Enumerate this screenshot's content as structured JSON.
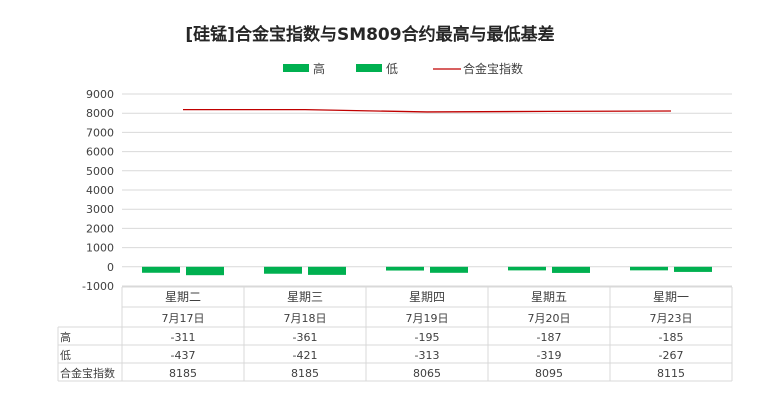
{
  "chart_data": {
    "type": "bar",
    "title": "[硅锰]合金宝指数与SM809合约最高与最低基差",
    "categories": [
      "星期二",
      "星期三",
      "星期四",
      "星期五",
      "星期一"
    ],
    "dates": [
      "7月17日",
      "7月18日",
      "7月19日",
      "7月20日",
      "7月23日"
    ],
    "ylim": [
      -1000,
      9000
    ],
    "yticks": [
      -1000,
      0,
      1000,
      2000,
      3000,
      4000,
      5000,
      6000,
      7000,
      8000,
      9000
    ],
    "grid": true,
    "legend_position": "top",
    "series": [
      {
        "name": "高",
        "kind": "bar",
        "color": "#00b050",
        "values": [
          -311,
          -361,
          -195,
          -187,
          -185
        ]
      },
      {
        "name": "低",
        "kind": "bar",
        "color": "#00b050",
        "values": [
          -437,
          -421,
          -313,
          -319,
          -267
        ]
      },
      {
        "name": "合金宝指数",
        "kind": "line",
        "color": "#c00000",
        "values": [
          8185,
          8185,
          8065,
          8095,
          8115
        ]
      }
    ]
  }
}
